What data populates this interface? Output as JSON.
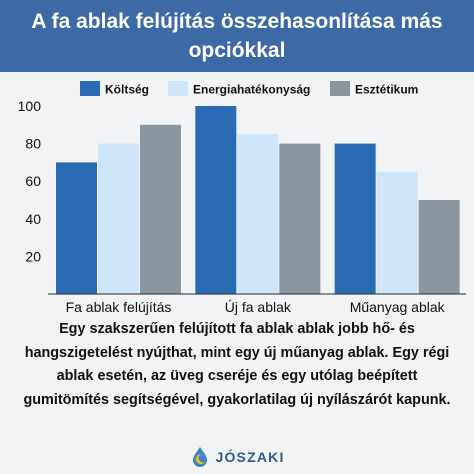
{
  "header": {
    "title": "A fa ablak felújítás összehasonlítása más opciókkal"
  },
  "chart_data": {
    "type": "bar",
    "title": "A fa ablak felújítás összehasonlítása más opciókkal",
    "categories": [
      "Fa ablak felújítás",
      "Új fa ablak",
      "Műanyag ablak"
    ],
    "series": [
      {
        "name": "Költség",
        "values": [
          70,
          100,
          80
        ],
        "color": "#2a6cb3"
      },
      {
        "name": "Energiahatékonyság",
        "values": [
          80,
          85,
          65
        ],
        "color": "#cfe6f8"
      },
      {
        "name": "Esztétikum",
        "values": [
          90,
          80,
          50
        ],
        "color": "#8c96a1"
      }
    ],
    "yticks": [
      20,
      40,
      60,
      80,
      100
    ],
    "ylim": [
      0,
      105
    ],
    "xlabel": "",
    "ylabel": "",
    "grid": false,
    "legend_position": "top"
  },
  "description": "Egy szakszerűen felújított fa ablak ablak jobb hő- és hangszigetelést nyújthat, mint egy új műanyag ablak. Egy régi ablak esetén, az üveg cseréje és egy utólag beépített gumitömítés segítségével, gyakorlatilag új nyílászárót kapunk.",
  "brand": {
    "name": "JÓSZAKI",
    "icon": "moon-drop-logo-icon"
  }
}
